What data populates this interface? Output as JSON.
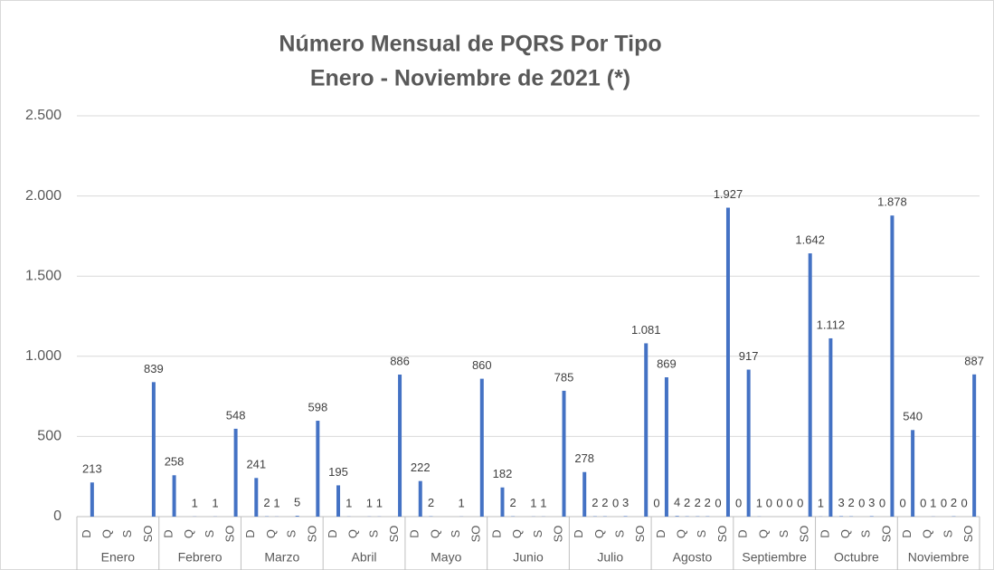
{
  "chart_data": {
    "type": "bar",
    "title": "Número Mensual de PQRS Por Tipo",
    "subtitle": "Enero - Noviembre de 2021 (*)",
    "groups": [
      "Enero",
      "Febrero",
      "Marzo",
      "Abril",
      "Mayo",
      "Junio",
      "Julio",
      "Agosto",
      "Septiembre",
      "Octubre",
      "Noviembre"
    ],
    "categories": [
      "D",
      "Q",
      "S",
      "SO",
      "D",
      "Q",
      "S",
      "SO",
      "D",
      "Q",
      "S",
      "SO",
      "D",
      "Q",
      "S",
      "SO",
      "D",
      "Q",
      "S",
      "SO",
      "D",
      "Q",
      "S",
      "SO",
      "D",
      "Q",
      "S",
      "SO",
      "D",
      "Q",
      "S",
      "SO",
      "D",
      "Q",
      "S",
      "SO",
      "D",
      "Q",
      "S",
      "SO",
      "D",
      "Q",
      "S",
      "SO"
    ],
    "series": [
      {
        "color": "#4472c4",
        "values": [
          null,
          null,
          null,
          null,
          null,
          null,
          null,
          null,
          null,
          2,
          null,
          null,
          null,
          1,
          1,
          null,
          null,
          2,
          null,
          null,
          null,
          2,
          1,
          null,
          null,
          2,
          0,
          null,
          0,
          4,
          2,
          0,
          0,
          1,
          0,
          0,
          1,
          3,
          0,
          0,
          0,
          0,
          0,
          0
        ]
      },
      {
        "color": "#4472c4",
        "values": [
          213,
          null,
          null,
          839,
          258,
          1,
          1,
          548,
          241,
          1,
          5,
          598,
          195,
          null,
          1,
          886,
          222,
          null,
          1,
          860,
          182,
          null,
          1,
          785,
          278,
          2,
          3,
          1081,
          869,
          2,
          2,
          1927,
          917,
          0,
          0,
          1642,
          1112,
          2,
          3,
          1878,
          540,
          1,
          2,
          887
        ],
        "value_labels": [
          "213",
          null,
          null,
          "839",
          "258",
          "1",
          "1",
          "548",
          "241",
          "1",
          "5",
          "598",
          "195",
          null,
          "1",
          "886",
          "222",
          null,
          "1",
          "860",
          "182",
          null,
          "1",
          "785",
          "278",
          "2",
          "3",
          "1.081",
          "869",
          "2",
          "2",
          "1.927",
          "917",
          "0",
          "0",
          "1.642",
          "1.112",
          "2",
          "3",
          "1.878",
          "540",
          "1",
          "2",
          "887"
        ]
      }
    ],
    "ylim": [
      0,
      2500
    ],
    "yticks": [
      0,
      500,
      {
        "value": 1000,
        "label": "1.000"
      },
      {
        "value": 1500,
        "label": "1.500"
      },
      {
        "value": 2000,
        "label": "2.000"
      },
      {
        "value": 2500,
        "label": "2.500"
      }
    ],
    "grid": true
  }
}
